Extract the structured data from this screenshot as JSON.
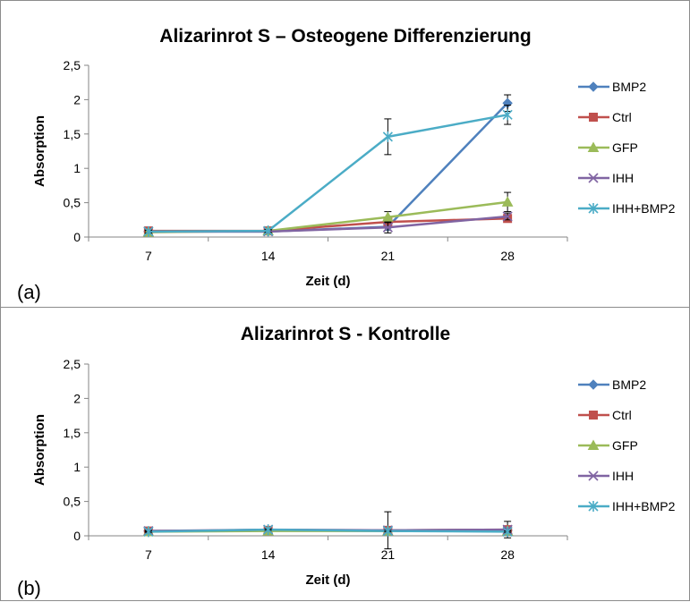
{
  "chart_data": [
    {
      "type": "line",
      "title": "Alizarinrot S – Osteogene Differenzierung",
      "panel_label": "(a)",
      "xlabel": "Zeit (d)",
      "ylabel": "Absorption",
      "categories": [
        "7",
        "14",
        "21",
        "28"
      ],
      "yticks": [
        "0",
        "0,5",
        "1",
        "1,5",
        "2",
        "2,5"
      ],
      "ylim": [
        0,
        2.5
      ],
      "grid": false,
      "legend": "right",
      "series": [
        {
          "name": "BMP2",
          "color": "#4F81BD",
          "marker": "diamond",
          "values": [
            0.08,
            0.08,
            0.15,
            1.95
          ],
          "errors": [
            0.02,
            0.02,
            0.05,
            0.12
          ]
        },
        {
          "name": "Ctrl",
          "color": "#C0504D",
          "marker": "square",
          "values": [
            0.09,
            0.09,
            0.22,
            0.27
          ],
          "errors": [
            0.02,
            0.02,
            0.04,
            0.03
          ]
        },
        {
          "name": "GFP",
          "color": "#9BBB59",
          "marker": "triangle",
          "values": [
            0.07,
            0.09,
            0.29,
            0.51
          ],
          "errors": [
            0.02,
            0.02,
            0.08,
            0.14
          ]
        },
        {
          "name": "IHH",
          "color": "#8064A2",
          "marker": "x",
          "values": [
            0.08,
            0.08,
            0.14,
            0.3
          ],
          "errors": [
            0.02,
            0.02,
            0.08,
            0.05
          ]
        },
        {
          "name": "IHH+BMP2",
          "color": "#4BACC6",
          "marker": "star",
          "values": [
            0.08,
            0.09,
            1.46,
            1.78
          ],
          "errors": [
            0.02,
            0.02,
            0.26,
            0.14
          ]
        }
      ]
    },
    {
      "type": "line",
      "title": "Alizarinrot S - Kontrolle",
      "panel_label": "(b)",
      "xlabel": "Zeit (d)",
      "ylabel": "Absorption",
      "categories": [
        "7",
        "14",
        "21",
        "28"
      ],
      "yticks": [
        "0",
        "0,5",
        "1",
        "1,5",
        "2",
        "2,5"
      ],
      "ylim": [
        0,
        2.5
      ],
      "grid": false,
      "legend": "right",
      "series": [
        {
          "name": "BMP2",
          "color": "#4F81BD",
          "marker": "diamond",
          "values": [
            0.07,
            0.08,
            0.07,
            0.08
          ],
          "errors": [
            0.01,
            0.01,
            0.01,
            0.01
          ]
        },
        {
          "name": "Ctrl",
          "color": "#C0504D",
          "marker": "square",
          "values": [
            0.07,
            0.08,
            0.08,
            0.09
          ],
          "errors": [
            0.01,
            0.01,
            0.01,
            0.12
          ]
        },
        {
          "name": "GFP",
          "color": "#9BBB59",
          "marker": "triangle",
          "values": [
            0.06,
            0.07,
            0.07,
            0.07
          ],
          "errors": [
            0.01,
            0.01,
            0.01,
            0.01
          ]
        },
        {
          "name": "IHH",
          "color": "#8064A2",
          "marker": "x",
          "values": [
            0.07,
            0.09,
            0.08,
            0.09
          ],
          "errors": [
            0.01,
            0.01,
            0.27,
            0.02
          ]
        },
        {
          "name": "IHH+BMP2",
          "color": "#4BACC6",
          "marker": "star",
          "values": [
            0.06,
            0.09,
            0.07,
            0.06
          ],
          "errors": [
            0.01,
            0.01,
            0.01,
            0.01
          ]
        }
      ]
    }
  ]
}
